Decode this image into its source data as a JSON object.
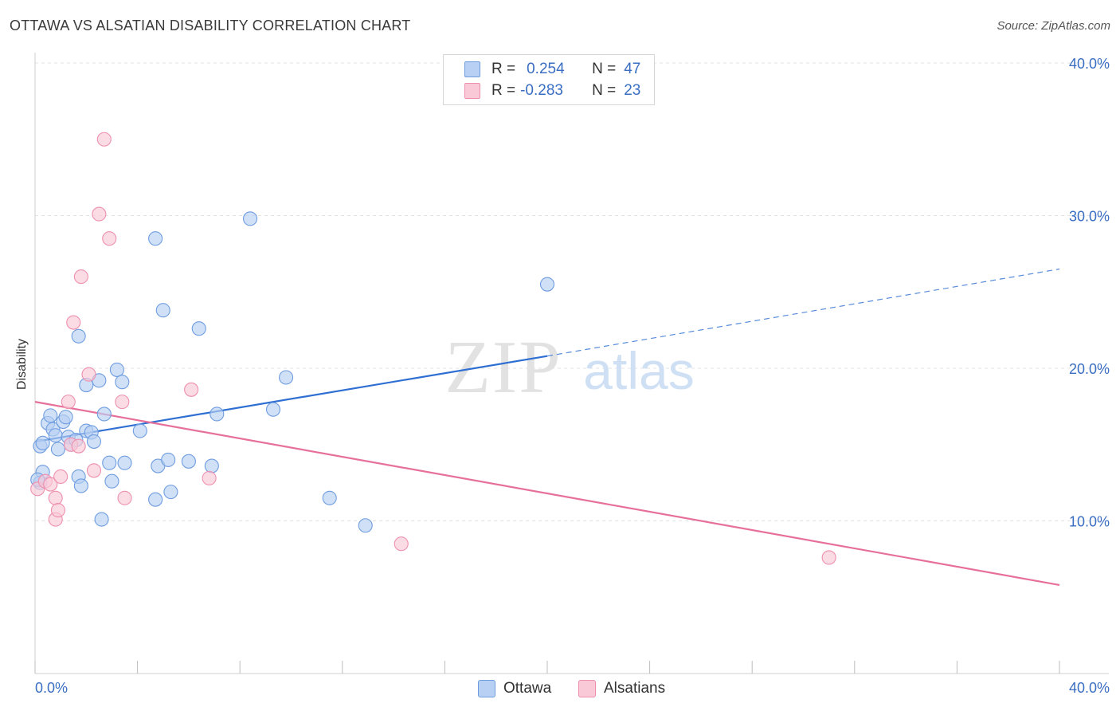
{
  "header": {
    "title": "OTTAWA VS ALSATIAN DISABILITY CORRELATION CHART",
    "source": "Source: ZipAtlas.com"
  },
  "watermark": {
    "zip": "ZIP",
    "atlas": "atlas"
  },
  "legend_top": [
    {
      "r_label": "R =",
      "r_value": "0.254",
      "n_label": "N =",
      "n_value": "47",
      "color": "#b7d0f3",
      "stroke": "#6f9de0"
    },
    {
      "r_label": "R =",
      "r_value": "-0.283",
      "n_label": "N =",
      "n_value": "23",
      "color": "#f9c9d7",
      "stroke": "#ee8fae"
    }
  ],
  "legend_bottom": [
    {
      "label": "Ottawa",
      "color": "#b7d0f3",
      "stroke": "#6f9de0"
    },
    {
      "label": "Alsatians",
      "color": "#f9c9d7",
      "stroke": "#ee8fae"
    }
  ],
  "chart_data": {
    "type": "scatter",
    "title": "OTTAWA VS ALSATIAN DISABILITY CORRELATION CHART",
    "xlabel": "",
    "ylabel": "Disability",
    "xlim": [
      0,
      40
    ],
    "ylim": [
      0,
      40
    ],
    "x_tick_labels": [
      "0.0%",
      "40.0%"
    ],
    "y_ticks": [
      10,
      20,
      30,
      40
    ],
    "y_tick_labels": [
      "10.0%",
      "20.0%",
      "30.0%",
      "40.0%"
    ],
    "grid": true,
    "legend_position": "top-center and bottom",
    "series": [
      {
        "name": "Ottawa",
        "color": "#6f9de0",
        "fill": "#b7d0f3",
        "trend_color": "#2f6fd1",
        "trend": {
          "x0": 0.05,
          "y0": 15.2,
          "x1": 20.0,
          "y1": 20.8,
          "x_end": 40.0,
          "y_end": 26.5
        },
        "points": [
          [
            0.2,
            14.9
          ],
          [
            0.3,
            15.1
          ],
          [
            0.3,
            13.2
          ],
          [
            0.2,
            12.5
          ],
          [
            0.5,
            16.4
          ],
          [
            0.6,
            16.9
          ],
          [
            0.7,
            16.0
          ],
          [
            0.8,
            15.6
          ],
          [
            0.9,
            14.7
          ],
          [
            1.1,
            16.5
          ],
          [
            1.2,
            16.8
          ],
          [
            1.3,
            15.5
          ],
          [
            1.4,
            15.0
          ],
          [
            1.6,
            15.3
          ],
          [
            1.7,
            12.9
          ],
          [
            1.8,
            12.3
          ],
          [
            1.7,
            22.1
          ],
          [
            2.0,
            15.9
          ],
          [
            2.0,
            18.9
          ],
          [
            2.2,
            15.8
          ],
          [
            2.3,
            15.2
          ],
          [
            2.5,
            19.2
          ],
          [
            2.6,
            10.1
          ],
          [
            2.7,
            17.0
          ],
          [
            2.9,
            13.8
          ],
          [
            3.0,
            12.6
          ],
          [
            3.2,
            19.9
          ],
          [
            3.4,
            19.1
          ],
          [
            3.5,
            13.8
          ],
          [
            4.1,
            15.9
          ],
          [
            4.7,
            11.4
          ],
          [
            4.7,
            28.5
          ],
          [
            4.8,
            13.6
          ],
          [
            5.0,
            23.8
          ],
          [
            5.2,
            14.0
          ],
          [
            5.3,
            11.9
          ],
          [
            6.0,
            13.9
          ],
          [
            6.4,
            22.6
          ],
          [
            6.9,
            13.6
          ],
          [
            7.1,
            17.0
          ],
          [
            8.4,
            29.8
          ],
          [
            9.3,
            17.3
          ],
          [
            9.8,
            19.4
          ],
          [
            11.5,
            11.5
          ],
          [
            12.9,
            9.7
          ],
          [
            20.0,
            25.5
          ],
          [
            0.1,
            12.7
          ]
        ]
      },
      {
        "name": "Alsatians",
        "color": "#ee8fae",
        "fill": "#f9c9d7",
        "trend_color": "#e7709b",
        "trend": {
          "x0": 0.0,
          "y0": 17.8,
          "x1": 40.0,
          "y1": 5.8
        },
        "points": [
          [
            0.1,
            12.1
          ],
          [
            0.4,
            12.6
          ],
          [
            0.6,
            12.4
          ],
          [
            0.8,
            11.5
          ],
          [
            0.8,
            10.1
          ],
          [
            0.9,
            10.7
          ],
          [
            1.0,
            12.9
          ],
          [
            1.3,
            17.8
          ],
          [
            1.4,
            15.0
          ],
          [
            1.5,
            23.0
          ],
          [
            1.7,
            14.9
          ],
          [
            1.8,
            26.0
          ],
          [
            2.1,
            19.6
          ],
          [
            2.3,
            13.3
          ],
          [
            2.5,
            30.1
          ],
          [
            2.7,
            35.0
          ],
          [
            2.9,
            28.5
          ],
          [
            3.4,
            17.8
          ],
          [
            3.5,
            11.5
          ],
          [
            6.1,
            18.6
          ],
          [
            6.8,
            12.8
          ],
          [
            14.3,
            8.5
          ],
          [
            31.0,
            7.6
          ]
        ]
      }
    ]
  }
}
